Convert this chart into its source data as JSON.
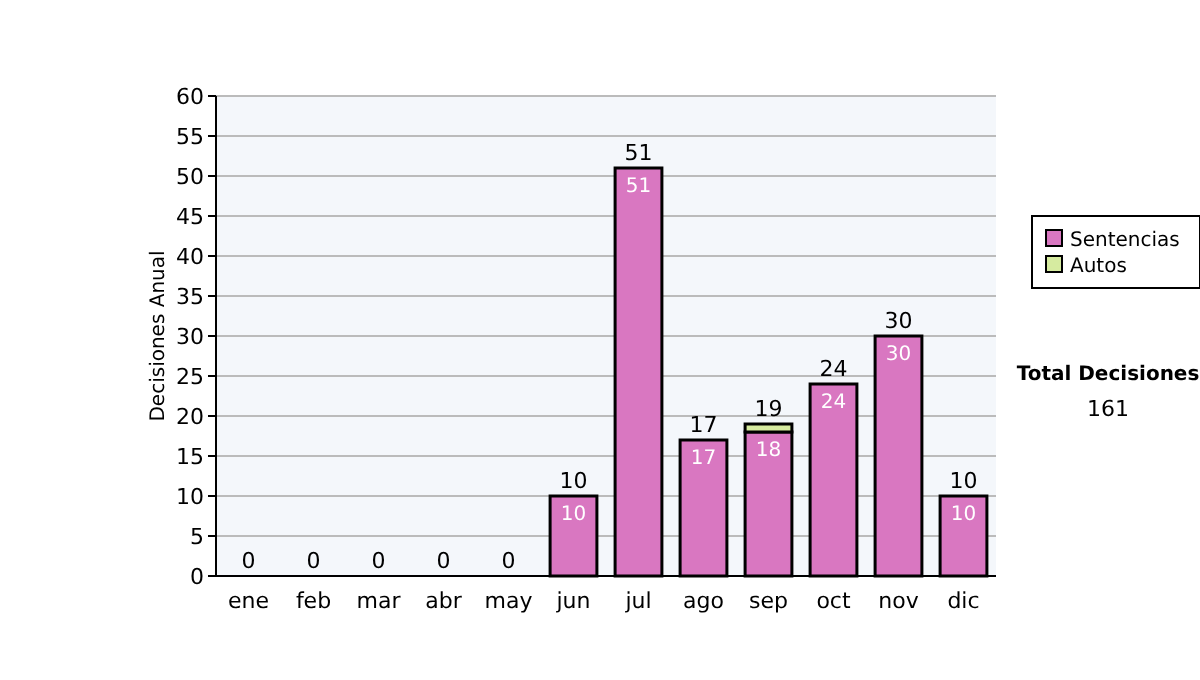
{
  "chart_data": {
    "type": "bar",
    "stacked": true,
    "ylabel": "Decisiones Anual",
    "categories": [
      "ene",
      "feb",
      "mar",
      "abr",
      "may",
      "jun",
      "jul",
      "ago",
      "sep",
      "oct",
      "nov",
      "dic"
    ],
    "series": [
      {
        "name": "Sentencias",
        "color": "#d977c1",
        "values": [
          0,
          0,
          0,
          0,
          0,
          10,
          51,
          17,
          18,
          24,
          30,
          10
        ],
        "value_labels": [
          null,
          null,
          null,
          null,
          null,
          "10",
          "51",
          "17",
          "18",
          "24",
          "30",
          "10"
        ]
      },
      {
        "name": "Autos",
        "color": "#d6eba0",
        "values": [
          0,
          0,
          0,
          0,
          0,
          0,
          0,
          0,
          1,
          0,
          0,
          0
        ]
      }
    ],
    "totals": [
      "0",
      "0",
      "0",
      "0",
      "0",
      "10",
      "51",
      "17",
      "19",
      "24",
      "30",
      "10"
    ],
    "ylim": [
      0,
      60
    ],
    "yticks": [
      0,
      5,
      10,
      15,
      20,
      25,
      30,
      35,
      40,
      45,
      50,
      55,
      60
    ],
    "grid": "y",
    "legend": "right",
    "annotations": [
      "Total Decisiones",
      "161"
    ]
  }
}
